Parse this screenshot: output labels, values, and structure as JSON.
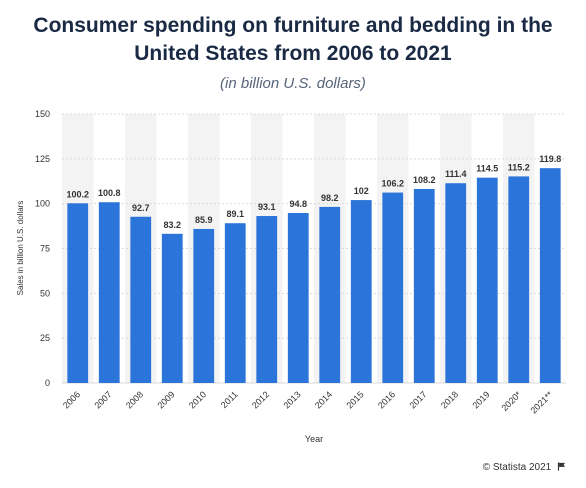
{
  "title": "Consumer spending on furniture and bedding in the United States from 2006 to 2021",
  "subtitle": "(in billion U.S. dollars)",
  "footer": {
    "credit": "© Statista 2021",
    "icon": "flag-icon"
  },
  "colors": {
    "bar": "#2b74d9",
    "stripe": "#f3f3f3",
    "grid": "#d9d9d9",
    "text": "#333333",
    "title": "#1a2a44"
  },
  "chart_data": {
    "type": "bar",
    "categories": [
      "2006",
      "2007",
      "2008",
      "2009",
      "2010",
      "2011",
      "2012",
      "2013",
      "2014",
      "2015",
      "2016",
      "2017",
      "2018",
      "2019",
      "2020*",
      "2021**"
    ],
    "values": [
      100.2,
      100.8,
      92.7,
      83.2,
      85.9,
      89.1,
      93.1,
      94.8,
      98.2,
      102,
      106.2,
      108.2,
      111.4,
      114.5,
      115.2,
      119.8
    ],
    "value_labels": [
      "100.2",
      "100.8",
      "92.7",
      "83.2",
      "85.9",
      "89.1",
      "93.1",
      "94.8",
      "98.2",
      "102",
      "106.2",
      "108.2",
      "111.4",
      "114.5",
      "115.2",
      "119.8"
    ],
    "xlabel": "Year",
    "ylabel": "Sales in billion U.S. dollars",
    "ylim": [
      0,
      150
    ],
    "yticks": [
      0,
      25,
      50,
      75,
      100,
      125,
      150
    ],
    "grid": true,
    "legend": "none"
  }
}
